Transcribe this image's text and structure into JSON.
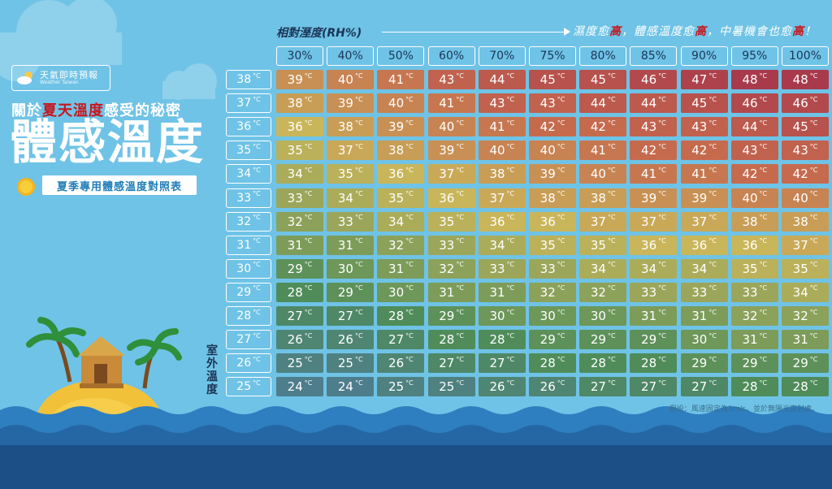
{
  "header": {
    "brand_name": "天氣即時預報",
    "brand_sub": "Weather Taiwan",
    "headline_pre": "關於",
    "headline_hl": "夏天溫度",
    "headline_post": "感受的秘密",
    "title": "體感溫度",
    "subtitle": "夏季專用體感溫度對照表"
  },
  "tagline": {
    "p1": "濕度愈",
    "h1": "高",
    "p2": "，體感溫度愈",
    "h2": "高",
    "p3": "，中暑機會也愈",
    "h3": "高",
    "p4": "！"
  },
  "note": "假設：風速固定為3m/s，並於無陽光直射處。",
  "colors": {
    "hot": "#a83a4c",
    "mid": "#c9b65a",
    "cool": "#4f8c5a",
    "cold": "#4e7d8c",
    "sea": "#1b4f86",
    "sky": "#6fc3e6"
  },
  "chart_data": {
    "type": "table",
    "xlabel": "相對溼度(RH%)",
    "ylabel": "室外溫度",
    "unit": "°C",
    "humidity": [
      "30%",
      "40%",
      "50%",
      "60%",
      "70%",
      "75%",
      "80%",
      "85%",
      "90%",
      "95%",
      "100%"
    ],
    "temperatures": [
      "38",
      "37",
      "36",
      "35",
      "34",
      "33",
      "32",
      "31",
      "30",
      "29",
      "28",
      "27",
      "26",
      "25"
    ],
    "values": [
      [
        39,
        40,
        41,
        43,
        44,
        45,
        45,
        46,
        47,
        48,
        48
      ],
      [
        38,
        39,
        40,
        41,
        43,
        43,
        44,
        44,
        45,
        46,
        46
      ],
      [
        36,
        38,
        39,
        40,
        41,
        42,
        42,
        43,
        43,
        44,
        45
      ],
      [
        35,
        37,
        38,
        39,
        40,
        40,
        41,
        42,
        42,
        43,
        43
      ],
      [
        34,
        35,
        36,
        37,
        38,
        39,
        40,
        41,
        41,
        42,
        42
      ],
      [
        33,
        34,
        35,
        36,
        37,
        38,
        38,
        39,
        39,
        40,
        40
      ],
      [
        32,
        33,
        34,
        35,
        36,
        36,
        37,
        37,
        37,
        38,
        38
      ],
      [
        31,
        31,
        32,
        33,
        34,
        35,
        35,
        36,
        36,
        36,
        37
      ],
      [
        29,
        30,
        31,
        32,
        33,
        33,
        34,
        34,
        34,
        35,
        35
      ],
      [
        28,
        29,
        30,
        31,
        31,
        32,
        32,
        33,
        33,
        33,
        34
      ],
      [
        27,
        27,
        28,
        29,
        30,
        30,
        30,
        31,
        31,
        32,
        32
      ],
      [
        26,
        26,
        27,
        28,
        28,
        29,
        29,
        29,
        30,
        31,
        31
      ],
      [
        25,
        25,
        26,
        27,
        27,
        28,
        28,
        28,
        29,
        29,
        29
      ],
      [
        24,
        24,
        25,
        25,
        26,
        26,
        27,
        27,
        27,
        28,
        28
      ]
    ]
  }
}
